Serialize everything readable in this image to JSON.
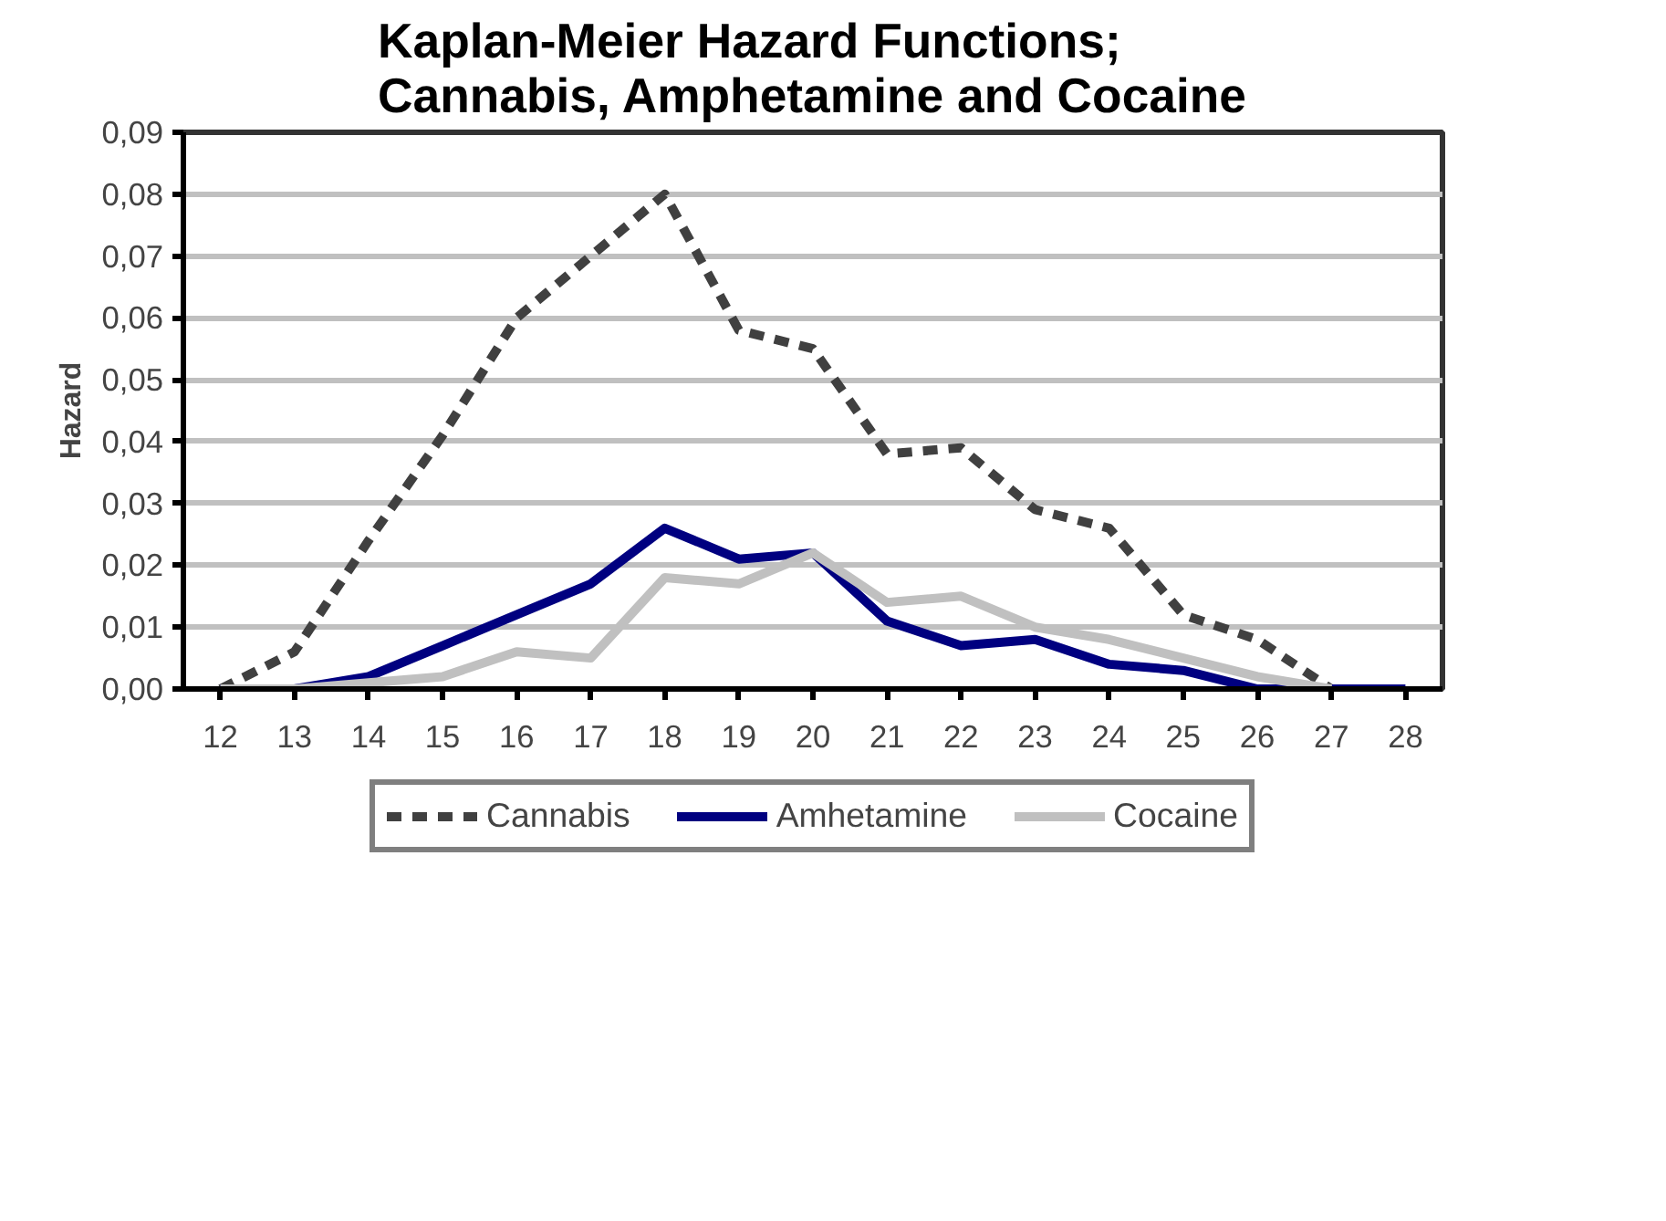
{
  "chart_data": {
    "type": "line",
    "title": "Kaplan-Meier Hazard Functions;\nCannabis, Amphetamine and Cocaine",
    "ylabel": "Hazard",
    "categories": [
      "12",
      "13",
      "14",
      "15",
      "16",
      "17",
      "18",
      "19",
      "20",
      "21",
      "22",
      "23",
      "24",
      "25",
      "26",
      "27",
      "28"
    ],
    "series": [
      {
        "name": "Cannabis",
        "color": "#404040",
        "line_style": "dashed",
        "values": [
          0.0,
          0.006,
          0.024,
          0.041,
          0.06,
          0.07,
          0.08,
          0.058,
          0.055,
          0.038,
          0.039,
          0.029,
          0.026,
          0.012,
          0.008,
          0.0,
          null
        ]
      },
      {
        "name": "Amhetamine",
        "color": "#000080",
        "line_style": "solid",
        "values": [
          0.0,
          0.0,
          0.002,
          0.007,
          0.012,
          0.017,
          0.026,
          0.021,
          0.022,
          0.011,
          0.007,
          0.008,
          0.004,
          0.003,
          0.0,
          0.0,
          0.0
        ]
      },
      {
        "name": "Cocaine",
        "color": "#c0c0c0",
        "line_style": "solid",
        "values": [
          0.0,
          0.0,
          0.001,
          0.002,
          0.006,
          0.005,
          0.018,
          0.017,
          0.022,
          0.014,
          0.015,
          0.01,
          0.008,
          0.005,
          0.002,
          0.0,
          null
        ]
      }
    ],
    "ylim": [
      0,
      0.09
    ],
    "yticks": [
      {
        "value": 0,
        "label": "0,00"
      },
      {
        "value": 0.01,
        "label": "0,01"
      },
      {
        "value": 0.02,
        "label": "0,02"
      },
      {
        "value": 0.03,
        "label": "0,03"
      },
      {
        "value": 0.04,
        "label": "0,04"
      },
      {
        "value": 0.05,
        "label": "0,05"
      },
      {
        "value": 0.06,
        "label": "0,06"
      },
      {
        "value": 0.07,
        "label": "0,07"
      },
      {
        "value": 0.08,
        "label": "0,08"
      },
      {
        "value": 0.09,
        "label": "0,09"
      }
    ],
    "grid": "y",
    "legend": "bottom",
    "marker": "none"
  }
}
